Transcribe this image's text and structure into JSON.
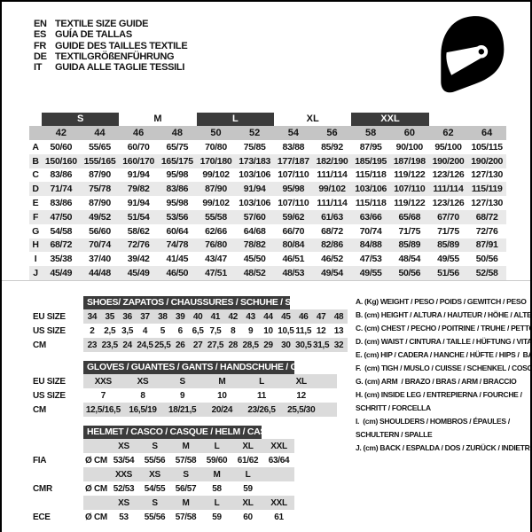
{
  "languages": [
    {
      "code": "EN",
      "title": "TEXTILE SIZE GUIDE"
    },
    {
      "code": "ES",
      "title": "GUÍA DE TALLAS"
    },
    {
      "code": "FR",
      "title": "GUIDE DES TAILLES TEXTILE"
    },
    {
      "code": "DE",
      "title": "TEXTILGRÖßENFÜHRUNG"
    },
    {
      "code": "IT",
      "title": "GUIDA ALLE TAGLIE TESSILI"
    }
  ],
  "icon": {
    "name": "helmet-icon"
  },
  "colors": {
    "dark_band": "#3b3b3b",
    "number_band": "#c5c5c5",
    "row_shade": "#e9e9e9",
    "lower_shade": "#dbdbdb",
    "text": "#141414",
    "band_text": "#ffffff"
  },
  "size_table": {
    "groups": [
      {
        "label": "S",
        "dark": true
      },
      {
        "label": "M",
        "dark": false
      },
      {
        "label": "L",
        "dark": true
      },
      {
        "label": "XL",
        "dark": false
      },
      {
        "label": "XXL",
        "dark": true
      }
    ],
    "columns": [
      "42",
      "44",
      "46",
      "48",
      "50",
      "52",
      "54",
      "56",
      "58",
      "60",
      "62",
      "64"
    ],
    "rows": [
      {
        "label": "A",
        "values": [
          "50/60",
          "55/65",
          "60/70",
          "65/75",
          "70/80",
          "75/85",
          "83/88",
          "85/92",
          "87/95",
          "90/100",
          "95/100",
          "105/115"
        ]
      },
      {
        "label": "B",
        "values": [
          "150/160",
          "155/165",
          "160/170",
          "165/175",
          "170/180",
          "173/183",
          "177/187",
          "182/190",
          "185/195",
          "187/198",
          "190/200",
          "190/200"
        ]
      },
      {
        "label": "C",
        "values": [
          "83/86",
          "87/90",
          "91/94",
          "95/98",
          "99/102",
          "103/106",
          "107/110",
          "111/114",
          "115/118",
          "119/122",
          "123/126",
          "127/130"
        ]
      },
      {
        "label": "D",
        "values": [
          "71/74",
          "75/78",
          "79/82",
          "83/86",
          "87/90",
          "91/94",
          "95/98",
          "99/102",
          "103/106",
          "107/110",
          "111/114",
          "115/119"
        ]
      },
      {
        "label": "E",
        "values": [
          "83/86",
          "87/90",
          "91/94",
          "95/98",
          "99/102",
          "103/106",
          "107/110",
          "111/114",
          "115/118",
          "119/122",
          "123/126",
          "127/130"
        ]
      },
      {
        "label": "F",
        "values": [
          "47/50",
          "49/52",
          "51/54",
          "53/56",
          "55/58",
          "57/60",
          "59/62",
          "61/63",
          "63/66",
          "65/68",
          "67/70",
          "68/72"
        ]
      },
      {
        "label": "G",
        "values": [
          "54/58",
          "56/60",
          "58/62",
          "60/64",
          "62/66",
          "64/68",
          "66/70",
          "68/72",
          "70/74",
          "71/75",
          "71/75",
          "72/76"
        ]
      },
      {
        "label": "H",
        "values": [
          "68/72",
          "70/74",
          "72/76",
          "74/78",
          "76/80",
          "78/82",
          "80/84",
          "82/86",
          "84/88",
          "85/89",
          "85/89",
          "87/91"
        ]
      },
      {
        "label": "I",
        "values": [
          "35/38",
          "37/40",
          "39/42",
          "41/45",
          "43/47",
          "45/50",
          "46/51",
          "46/52",
          "47/53",
          "48/54",
          "49/55",
          "50/56"
        ]
      },
      {
        "label": "J",
        "values": [
          "45/49",
          "44/48",
          "45/49",
          "46/50",
          "47/51",
          "48/52",
          "48/53",
          "49/54",
          "49/55",
          "50/56",
          "51/56",
          "52/58"
        ]
      }
    ]
  },
  "shoes_table": {
    "title": "SHOES/ ZAPATOS / CHAUSSURES / SCHUHE / SCARPE",
    "rows": [
      {
        "label": "EU SIZE",
        "shaded": true,
        "values": [
          "34",
          "35",
          "36",
          "37",
          "38",
          "39",
          "40",
          "41",
          "42",
          "43",
          "44",
          "45",
          "46",
          "47",
          "48"
        ]
      },
      {
        "label": "US SIZE",
        "shaded": false,
        "values": [
          "2",
          "2,5",
          "3,5",
          "4",
          "5",
          "6",
          "6,5",
          "7,5",
          "8",
          "9",
          "10",
          "10,5",
          "11,5",
          "12",
          "13"
        ]
      },
      {
        "label": "CM",
        "shaded": true,
        "values": [
          "23",
          "23,5",
          "24",
          "24,5",
          "25,5",
          "26",
          "27",
          "27,5",
          "28",
          "28,5",
          "29",
          "30",
          "30,5",
          "31,5",
          "32"
        ]
      }
    ]
  },
  "gloves_table": {
    "title": "GLOVES / GUANTES / GANTS / HANDSCHUHE / GUANTI",
    "rows": [
      {
        "label": "EU SIZE",
        "shaded": true,
        "values": [
          "XXS",
          "XS",
          "S",
          "M",
          "L",
          "XL"
        ]
      },
      {
        "label": "US SIZE",
        "shaded": false,
        "values": [
          "7",
          "8",
          "9",
          "10",
          "11",
          "12"
        ]
      },
      {
        "label": "CM",
        "shaded": true,
        "values": [
          "12,5/16,5",
          "16,5/19",
          "18/21,5",
          "20/24",
          "23/26,5",
          "25,5/30"
        ]
      }
    ]
  },
  "helmet_table": {
    "title": "HELMET / CASCO / CASQUE / HELM / CASCO",
    "rows": [
      {
        "label": "",
        "unit": "",
        "shaded": true,
        "values": [
          "XS",
          "S",
          "M",
          "L",
          "XL",
          "XXL"
        ]
      },
      {
        "label": "FIA",
        "unit": "Ø CM",
        "shaded": false,
        "values": [
          "53/54",
          "55/56",
          "57/58",
          "59/60",
          "61/62",
          "63/64"
        ]
      },
      {
        "label": "",
        "unit": "",
        "shaded": true,
        "values": [
          "XXS",
          "XS",
          "S",
          "M",
          "L",
          ""
        ]
      },
      {
        "label": "CMR",
        "unit": "Ø CM",
        "shaded": false,
        "values": [
          "52/53",
          "54/55",
          "56/57",
          "58",
          "59",
          ""
        ]
      },
      {
        "label": "",
        "unit": "",
        "shaded": true,
        "values": [
          "XS",
          "S",
          "M",
          "L",
          "XL",
          "XXL"
        ]
      },
      {
        "label": "ECE",
        "unit": "Ø CM",
        "shaded": false,
        "values": [
          "53",
          "55/56",
          "57/58",
          "59",
          "60",
          "61"
        ]
      }
    ]
  },
  "legend": {
    "items": [
      "A. (Kg) WEIGHT / PESO / POIDS / GEWITCH / PESO",
      "B. (cm) HEIGHT / ALTURA / HAUTEUR / HÖHE / ALTEZZA",
      "C. (cm) CHEST / PECHO / POITRINE / TRUHE / PETTO",
      "D. (cm) WAIST / CINTURA / TAILLE / HÜFTUNG / VITA",
      "E. (cm) HIP / CADERA / HANCHE / HÜFTE / HIPS /  BACINO",
      "F.  (cm) TIGH / MUSLO / CUISSE / SCHENKEL / COSCIA",
      "G. (cm) ARM  / BRAZO / BRAS / ARM / BRACCIO",
      "H. (cm) INSIDE LEG / ENTREPIERNA / FOURCHE /\nSCHRITT / FORCELLA",
      "I.  (cm) SHOULDERS / HOMBROS / ÉPAULES /\nSCHULTERN / SPALLE",
      "J. (cm) BACK / ESPALDA / DOS / ZURÜCK / INDIETRO"
    ]
  }
}
